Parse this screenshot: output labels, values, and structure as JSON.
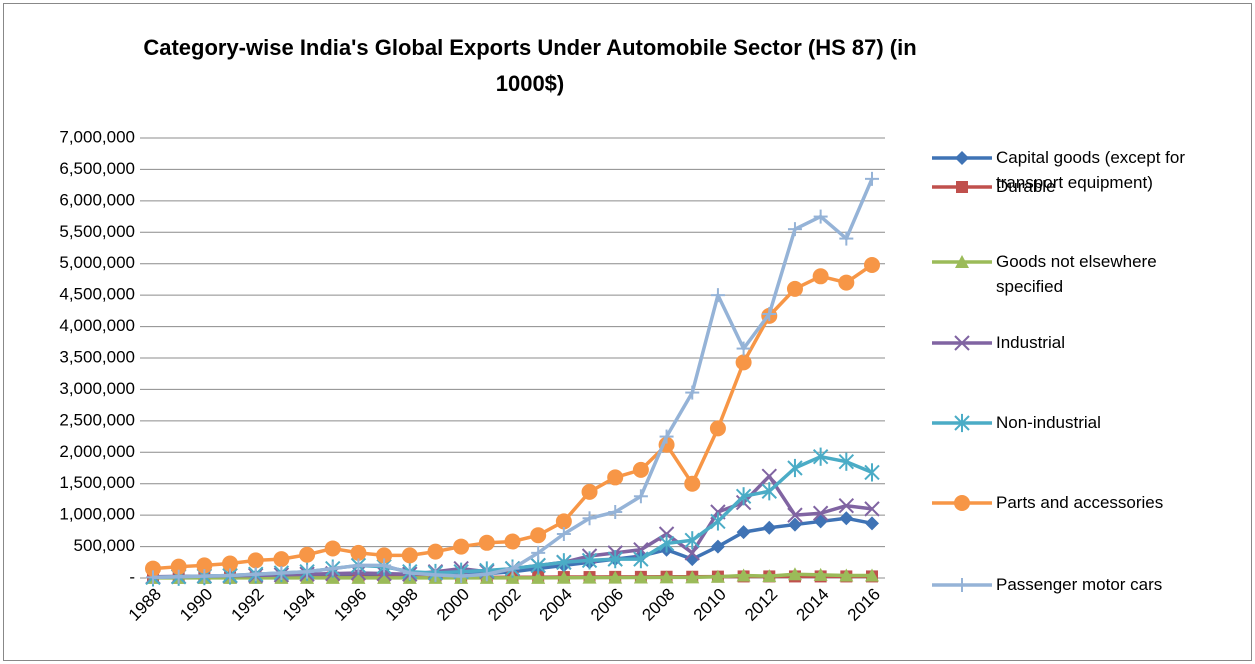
{
  "chart_data": {
    "type": "line",
    "title": "Category-wise India's Global Exports Under Automobile Sector (HS 87) (in 1000$)",
    "categories": [
      "1988",
      null,
      "1990",
      null,
      "1992",
      null,
      "1994",
      null,
      "1996",
      null,
      "1998",
      null,
      "2000",
      null,
      "2002",
      null,
      "2004",
      null,
      "2006",
      null,
      "2008",
      null,
      "2010",
      null,
      "2012",
      null,
      "2014",
      null,
      "2016"
    ],
    "ylim": [
      0,
      7000000
    ],
    "yticks": [
      {
        "value": 0,
        "label": "-"
      },
      {
        "value": 500000,
        "label": "500,000"
      },
      {
        "value": 1000000,
        "label": "1,000,000"
      },
      {
        "value": 1500000,
        "label": "1,500,000"
      },
      {
        "value": 2000000,
        "label": "2,000,000"
      },
      {
        "value": 2500000,
        "label": "2,500,000"
      },
      {
        "value": 3000000,
        "label": "3,000,000"
      },
      {
        "value": 3500000,
        "label": "3,500,000"
      },
      {
        "value": 4000000,
        "label": "4,000,000"
      },
      {
        "value": 4500000,
        "label": "4,500,000"
      },
      {
        "value": 5000000,
        "label": "5,000,000"
      },
      {
        "value": 5500000,
        "label": "5,500,000"
      },
      {
        "value": 6000000,
        "label": "6,000,000"
      },
      {
        "value": 6500000,
        "label": "6,500,000"
      },
      {
        "value": 7000000,
        "label": "7,000,000"
      }
    ],
    "grid": true,
    "legend": "right",
    "series": [
      {
        "name": "Capital goods (except for transport equipment)",
        "color": "#3f73b5",
        "marker": "diamond",
        "values": [
          10000,
          15000,
          18000,
          20000,
          25000,
          28000,
          30000,
          35000,
          40000,
          42000,
          45000,
          50000,
          60000,
          70000,
          100000,
          150000,
          200000,
          250000,
          300000,
          350000,
          450000,
          300000,
          500000,
          730000,
          800000,
          850000,
          900000,
          950000,
          870000
        ]
      },
      {
        "name": "Durable",
        "color": "#c0504d",
        "marker": "square",
        "values": [
          5000,
          5000,
          5000,
          6000,
          6000,
          7000,
          8000,
          8000,
          9000,
          10000,
          10000,
          10000,
          10000,
          10000,
          12000,
          12000,
          15000,
          15000,
          18000,
          18000,
          20000,
          20000,
          22000,
          25000,
          25000,
          25000,
          25000,
          25000,
          25000
        ]
      },
      {
        "name": "Goods not elsewhere specified",
        "color": "#9bbb59",
        "marker": "triangle",
        "values": [
          1000,
          1000,
          1000,
          1000,
          1000,
          1000,
          1000,
          1000,
          1000,
          1000,
          1000,
          1000,
          1000,
          1000,
          2000,
          2000,
          3000,
          5000,
          5000,
          8000,
          10000,
          10000,
          20000,
          40000,
          30000,
          60000,
          50000,
          40000,
          40000
        ]
      },
      {
        "name": "Industrial",
        "color": "#8064a2",
        "marker": "x",
        "values": [
          20000,
          25000,
          30000,
          35000,
          40000,
          50000,
          60000,
          70000,
          80000,
          70000,
          60000,
          100000,
          150000,
          100000,
          150000,
          200000,
          250000,
          350000,
          400000,
          450000,
          700000,
          400000,
          1050000,
          1200000,
          1620000,
          1000000,
          1030000,
          1150000,
          1100000
        ]
      },
      {
        "name": "Non-industrial",
        "color": "#4bacc6",
        "marker": "asterisk",
        "values": [
          10000,
          20000,
          30000,
          40000,
          60000,
          80000,
          100000,
          150000,
          200000,
          180000,
          100000,
          80000,
          100000,
          120000,
          150000,
          200000,
          250000,
          280000,
          300000,
          300000,
          550000,
          600000,
          900000,
          1300000,
          1380000,
          1750000,
          1930000,
          1850000,
          1680000
        ]
      },
      {
        "name": "Parts and accessories",
        "color": "#f79646",
        "marker": "circle",
        "values": [
          150000,
          180000,
          200000,
          230000,
          280000,
          300000,
          370000,
          470000,
          400000,
          360000,
          360000,
          420000,
          500000,
          560000,
          580000,
          680000,
          900000,
          1370000,
          1600000,
          1720000,
          2120000,
          1500000,
          2380000,
          3430000,
          4170000,
          4600000,
          4800000,
          4700000,
          4980000
        ]
      },
      {
        "name": "Passenger motor cars",
        "color": "#95b3d7",
        "marker": "plus",
        "values": [
          10000,
          20000,
          30000,
          40000,
          60000,
          80000,
          100000,
          150000,
          200000,
          200000,
          80000,
          50000,
          30000,
          60000,
          150000,
          400000,
          700000,
          950000,
          1050000,
          1300000,
          2250000,
          2950000,
          4500000,
          3650000,
          4200000,
          5550000,
          5750000,
          5400000,
          6350000
        ]
      }
    ]
  }
}
